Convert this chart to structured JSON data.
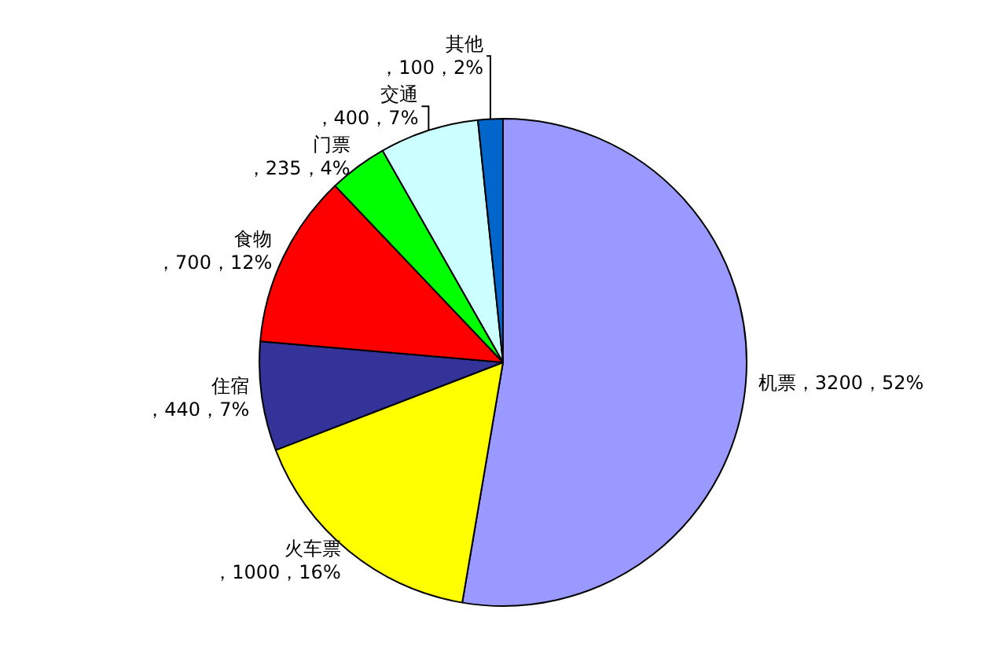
{
  "chart_data": {
    "type": "pie",
    "categories": [
      "机票",
      "火车票",
      "住宿",
      "食物",
      "门票",
      "交通",
      "其他"
    ],
    "values": [
      3200,
      1000,
      440,
      700,
      235,
      400,
      100
    ],
    "colors": [
      "#9999ff",
      "#ffff00",
      "#333399",
      "#ff0000",
      "#00ff00",
      "#ccffff",
      "#0066cc"
    ],
    "value_labels": [
      "，3200，52%",
      "，1000，16%",
      "，440，7%",
      "，700，12%",
      "，235，4%",
      "，400，7%",
      "，100，2%"
    ],
    "legend": false
  }
}
